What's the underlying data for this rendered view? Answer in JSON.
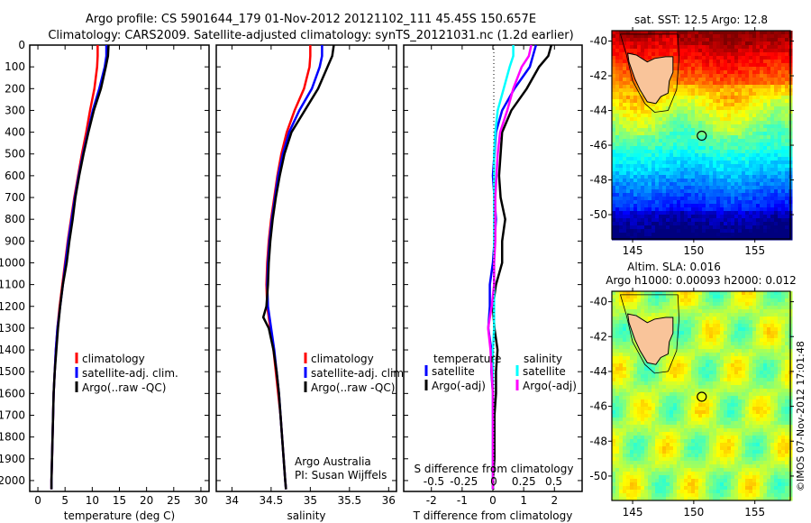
{
  "title": {
    "line1": "Argo profile: CS 5901644_179 01-Nov-2012 20121102_111 45.45S 150.657E",
    "line2": "Climatology: CARS2009. Satellite-adjusted climatology: synTS_20121031.nc (1.2d earlier)"
  },
  "credit": "©IMOS 07-Nov-2012 17:01:48",
  "colors": {
    "clim": "#ff0000",
    "sat": "#0000ff",
    "argo": "#000000",
    "s_sat": "#00ffff",
    "s_argo": "#ff00ff"
  },
  "chart_data": [
    {
      "type": "line",
      "name": "temperature",
      "xlabel": "temperature (deg C)",
      "xlim": [
        -1.5,
        31.5
      ],
      "ylim": [
        2050,
        0
      ],
      "xticks": [
        0,
        5,
        10,
        15,
        20,
        25,
        30
      ],
      "yticks": [
        0,
        100,
        200,
        300,
        400,
        500,
        600,
        700,
        800,
        900,
        1000,
        1100,
        1200,
        1300,
        1400,
        1500,
        1600,
        1700,
        1800,
        1900,
        2000
      ],
      "legend": [
        "climatology",
        "satellite-adj. clim.",
        "Argo(..raw -QC)"
      ],
      "depth": [
        0,
        50,
        100,
        200,
        300,
        400,
        500,
        600,
        700,
        800,
        900,
        1000,
        1100,
        1200,
        1300,
        1400,
        1500,
        1600,
        1700,
        1800,
        1900,
        2000,
        2040
      ],
      "series": [
        {
          "name": "climatology",
          "values": [
            11.0,
            11.0,
            10.9,
            10.4,
            9.6,
            8.9,
            8.1,
            7.4,
            6.7,
            6.1,
            5.5,
            5.0,
            4.5,
            4.0,
            3.6,
            3.3,
            3.1,
            2.9,
            2.8,
            2.7,
            2.6,
            2.5,
            2.5
          ]
        },
        {
          "name": "satellite-adj. clim.",
          "values": [
            12.6,
            12.6,
            12.3,
            11.3,
            10.1,
            9.2,
            8.3,
            7.5,
            6.8,
            6.2,
            5.6,
            5.1,
            4.6,
            4.1,
            3.6,
            3.3,
            3.1,
            2.9,
            2.8,
            2.7,
            2.6,
            2.5,
            2.5
          ]
        },
        {
          "name": "Argo(..raw -QC)",
          "values": [
            13.0,
            12.9,
            12.5,
            11.6,
            10.3,
            9.3,
            8.4,
            7.6,
            6.9,
            6.4,
            5.8,
            5.3,
            4.6,
            4.1,
            3.7,
            3.4,
            3.1,
            2.9,
            2.8,
            2.7,
            2.6,
            2.5,
            2.5
          ]
        }
      ]
    },
    {
      "type": "line",
      "name": "salinity",
      "xlabel": "salinity",
      "xlim": [
        33.8,
        36.1
      ],
      "ylim": [
        2050,
        0
      ],
      "xticks": [
        34,
        34.5,
        35,
        35.5,
        36
      ],
      "xticklabels": [
        "34",
        "34.5",
        "35",
        "35.5",
        "36"
      ],
      "legend": [
        "climatology",
        "satellite-adj. clim.",
        "Argo(..raw -QC)"
      ],
      "annotation": [
        "Argo Australia",
        "PI: Susan Wijffels"
      ],
      "depth": [
        0,
        50,
        100,
        200,
        300,
        400,
        500,
        600,
        700,
        800,
        900,
        1000,
        1100,
        1200,
        1250,
        1300,
        1350,
        1400,
        1500,
        1600,
        1700,
        1800,
        1900,
        2000,
        2040
      ],
      "series": [
        {
          "name": "climatology",
          "values": [
            35.0,
            35.0,
            34.99,
            34.92,
            34.8,
            34.7,
            34.63,
            34.58,
            34.54,
            34.5,
            34.47,
            34.45,
            34.44,
            34.45,
            34.47,
            34.49,
            34.51,
            34.53,
            34.56,
            34.59,
            34.62,
            34.64,
            34.66,
            34.68,
            34.69
          ]
        },
        {
          "name": "satellite-adj. clim.",
          "values": [
            35.15,
            35.15,
            35.12,
            35.02,
            34.86,
            34.73,
            34.65,
            34.59,
            34.55,
            34.51,
            34.48,
            34.46,
            34.45,
            34.46,
            34.48,
            34.5,
            34.52,
            34.54,
            34.57,
            34.6,
            34.62,
            34.64,
            34.66,
            34.68,
            34.69
          ]
        },
        {
          "name": "Argo(..raw -QC)",
          "values": [
            35.3,
            35.28,
            35.22,
            35.1,
            34.93,
            34.76,
            34.67,
            34.61,
            34.56,
            34.52,
            34.49,
            34.47,
            34.46,
            34.44,
            34.4,
            34.47,
            34.5,
            34.53,
            34.57,
            34.6,
            34.62,
            34.64,
            34.66,
            34.68,
            34.69
          ]
        }
      ]
    },
    {
      "type": "line",
      "name": "difference from climatology",
      "xlabel": "T difference from climatology",
      "x2label": "S difference from climatology",
      "xlim": [
        -2.9,
        2.9
      ],
      "ylim": [
        2050,
        0
      ],
      "xticks": [
        -2,
        -1,
        0,
        1,
        2
      ],
      "x2ticks": [
        -0.5,
        -0.25,
        0,
        0.25,
        0.5
      ],
      "x2ticklabels": [
        "-0.5",
        "-0.25",
        "0",
        "0.25",
        "0.5"
      ],
      "legend_headers": [
        "temperature",
        "salinity"
      ],
      "legend": [
        "satellite",
        "Argo(-adj)",
        "satellite",
        "Argo(-adj)"
      ],
      "depth": [
        0,
        50,
        100,
        200,
        300,
        400,
        500,
        600,
        700,
        800,
        900,
        1000,
        1100,
        1200,
        1300,
        1400,
        1500,
        1600,
        1700,
        1800,
        1900,
        2000,
        2040
      ],
      "series": [
        {
          "name": "T satellite",
          "axis": "T",
          "values": [
            1.4,
            1.3,
            1.2,
            0.7,
            0.3,
            0.1,
            0.05,
            0.0,
            0.05,
            0.1,
            0.05,
            0.0,
            -0.1,
            -0.1,
            -0.15,
            -0.05,
            -0.05,
            0.0,
            0.0,
            0.0,
            0.0,
            0.0,
            0.0
          ]
        },
        {
          "name": "T Argo(-adj)",
          "axis": "T",
          "values": [
            1.9,
            1.8,
            1.5,
            1.1,
            0.6,
            0.3,
            0.25,
            0.2,
            0.25,
            0.4,
            0.3,
            0.3,
            0.1,
            0.0,
            0.05,
            0.15,
            0.1,
            0.1,
            0.05,
            0.05,
            0.05,
            0.0,
            0.0
          ]
        },
        {
          "name": "S satellite",
          "axis": "S",
          "values": [
            0.17,
            0.17,
            0.14,
            0.09,
            0.04,
            0.02,
            0.01,
            0.01,
            0.01,
            0.01,
            0.01,
            0.01,
            0.01,
            0.01,
            0.01,
            0.0,
            0.0,
            0.0,
            0.0,
            0.0,
            0.0,
            0.0,
            0.0
          ]
        },
        {
          "name": "S Argo(-adj)",
          "axis": "S",
          "values": [
            0.32,
            0.3,
            0.24,
            0.17,
            0.12,
            0.06,
            0.04,
            0.03,
            0.02,
            0.02,
            0.02,
            0.01,
            0.01,
            -0.01,
            -0.04,
            -0.02,
            -0.01,
            0.0,
            0.0,
            0.0,
            0.0,
            0.0,
            0.0
          ]
        }
      ]
    },
    {
      "type": "heatmap",
      "name": "sst-map",
      "title": "sat. SST: 12.5  Argo: 12.8",
      "xlim": [
        143.3,
        157.9
      ],
      "ylim": [
        -51.4,
        -39.4
      ],
      "xticks": [
        145,
        150,
        155
      ],
      "yticks": [
        -40,
        -42,
        -44,
        -46,
        -48,
        -50
      ],
      "argo_position": {
        "lon": 150.657,
        "lat": -45.45
      }
    },
    {
      "type": "heatmap",
      "name": "sla-map",
      "title": [
        "Altim. SLA: 0.016",
        "Argo h1000: 0.00093 h2000: 0.012"
      ],
      "xlim": [
        143.3,
        157.9
      ],
      "ylim": [
        -51.4,
        -39.4
      ],
      "xticks": [
        145,
        150,
        155
      ],
      "yticks": [
        -40,
        -42,
        -44,
        -46,
        -48,
        -50
      ],
      "argo_position": {
        "lon": 150.657,
        "lat": -45.45
      }
    }
  ]
}
